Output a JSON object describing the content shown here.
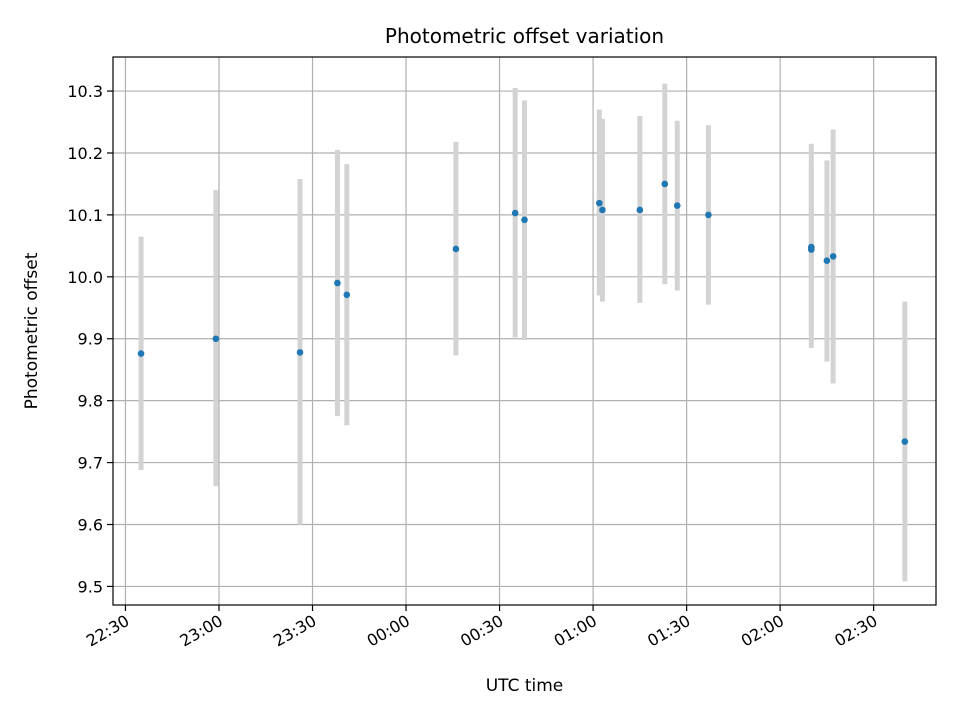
{
  "chart_data": {
    "type": "scatter",
    "title": "Photometric offset variation",
    "xlabel": "UTC time",
    "ylabel": "Photometric offset",
    "x_axis": {
      "kind": "time",
      "xlim": [
        "22:26",
        "02:50"
      ],
      "ticks": [
        "22:30",
        "23:00",
        "23:30",
        "00:00",
        "00:30",
        "01:00",
        "01:30",
        "02:00",
        "02:30"
      ]
    },
    "y_axis": {
      "ylim": [
        9.47,
        10.355
      ],
      "ticks": [
        "9.5",
        "9.6",
        "9.7",
        "9.8",
        "9.9",
        "10.0",
        "10.1",
        "10.2",
        "10.3"
      ]
    },
    "grid": true,
    "marker_color": "#1f77b4",
    "errorbar_color": "#d3d3d3",
    "points": [
      {
        "t": "22:35",
        "y": 9.876,
        "lo": 9.688,
        "hi": 10.065
      },
      {
        "t": "22:59",
        "y": 9.9,
        "lo": 9.662,
        "hi": 10.14
      },
      {
        "t": "23:26",
        "y": 9.878,
        "lo": 9.6,
        "hi": 10.158
      },
      {
        "t": "23:38",
        "y": 9.99,
        "lo": 9.775,
        "hi": 10.205
      },
      {
        "t": "23:41",
        "y": 9.971,
        "lo": 9.76,
        "hi": 10.182
      },
      {
        "t": "00:16",
        "y": 10.045,
        "lo": 9.873,
        "hi": 10.218
      },
      {
        "t": "00:35",
        "y": 10.103,
        "lo": 9.902,
        "hi": 10.305
      },
      {
        "t": "00:38",
        "y": 10.092,
        "lo": 9.898,
        "hi": 10.285
      },
      {
        "t": "01:02",
        "y": 10.119,
        "lo": 9.97,
        "hi": 10.27
      },
      {
        "t": "01:03",
        "y": 10.108,
        "lo": 9.96,
        "hi": 10.255
      },
      {
        "t": "01:15",
        "y": 10.108,
        "lo": 9.958,
        "hi": 10.26
      },
      {
        "t": "01:23",
        "y": 10.15,
        "lo": 9.988,
        "hi": 10.312
      },
      {
        "t": "01:27",
        "y": 10.115,
        "lo": 9.978,
        "hi": 10.252
      },
      {
        "t": "01:37",
        "y": 10.1,
        "lo": 9.955,
        "hi": 10.245
      },
      {
        "t": "02:10",
        "y": 10.044,
        "lo": 9.915,
        "hi": 10.175
      },
      {
        "t": "02:10",
        "y": 10.048,
        "lo": 9.885,
        "hi": 10.215
      },
      {
        "t": "02:15",
        "y": 10.026,
        "lo": 9.863,
        "hi": 10.188
      },
      {
        "t": "02:17",
        "y": 10.033,
        "lo": 9.828,
        "hi": 10.238
      },
      {
        "t": "02:40",
        "y": 9.734,
        "lo": 9.508,
        "hi": 9.96
      }
    ]
  }
}
